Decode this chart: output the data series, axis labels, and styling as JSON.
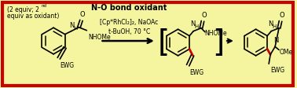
{
  "background_color": "#F5F5A0",
  "border_color": "#CC0000",
  "border_linewidth": 3.0,
  "fig_width": 3.78,
  "fig_height": 1.12,
  "dpi": 100,
  "text_color": "#000000",
  "bond_color": "#000000",
  "red_bond_color": "#CC0000",
  "bracket_color": "#000000",
  "arrow_color": "#000000",
  "nO_bond_text": "N-O bond oxidant",
  "catalyst_text": "[Cp*RhCl₂]₂, NaOAc",
  "conditions_text": "t-BuOH, 70 °C",
  "top_line1": "(2 equiv; 2",
  "top_super": "nd",
  "top_line2": "equiv as oxidant)"
}
